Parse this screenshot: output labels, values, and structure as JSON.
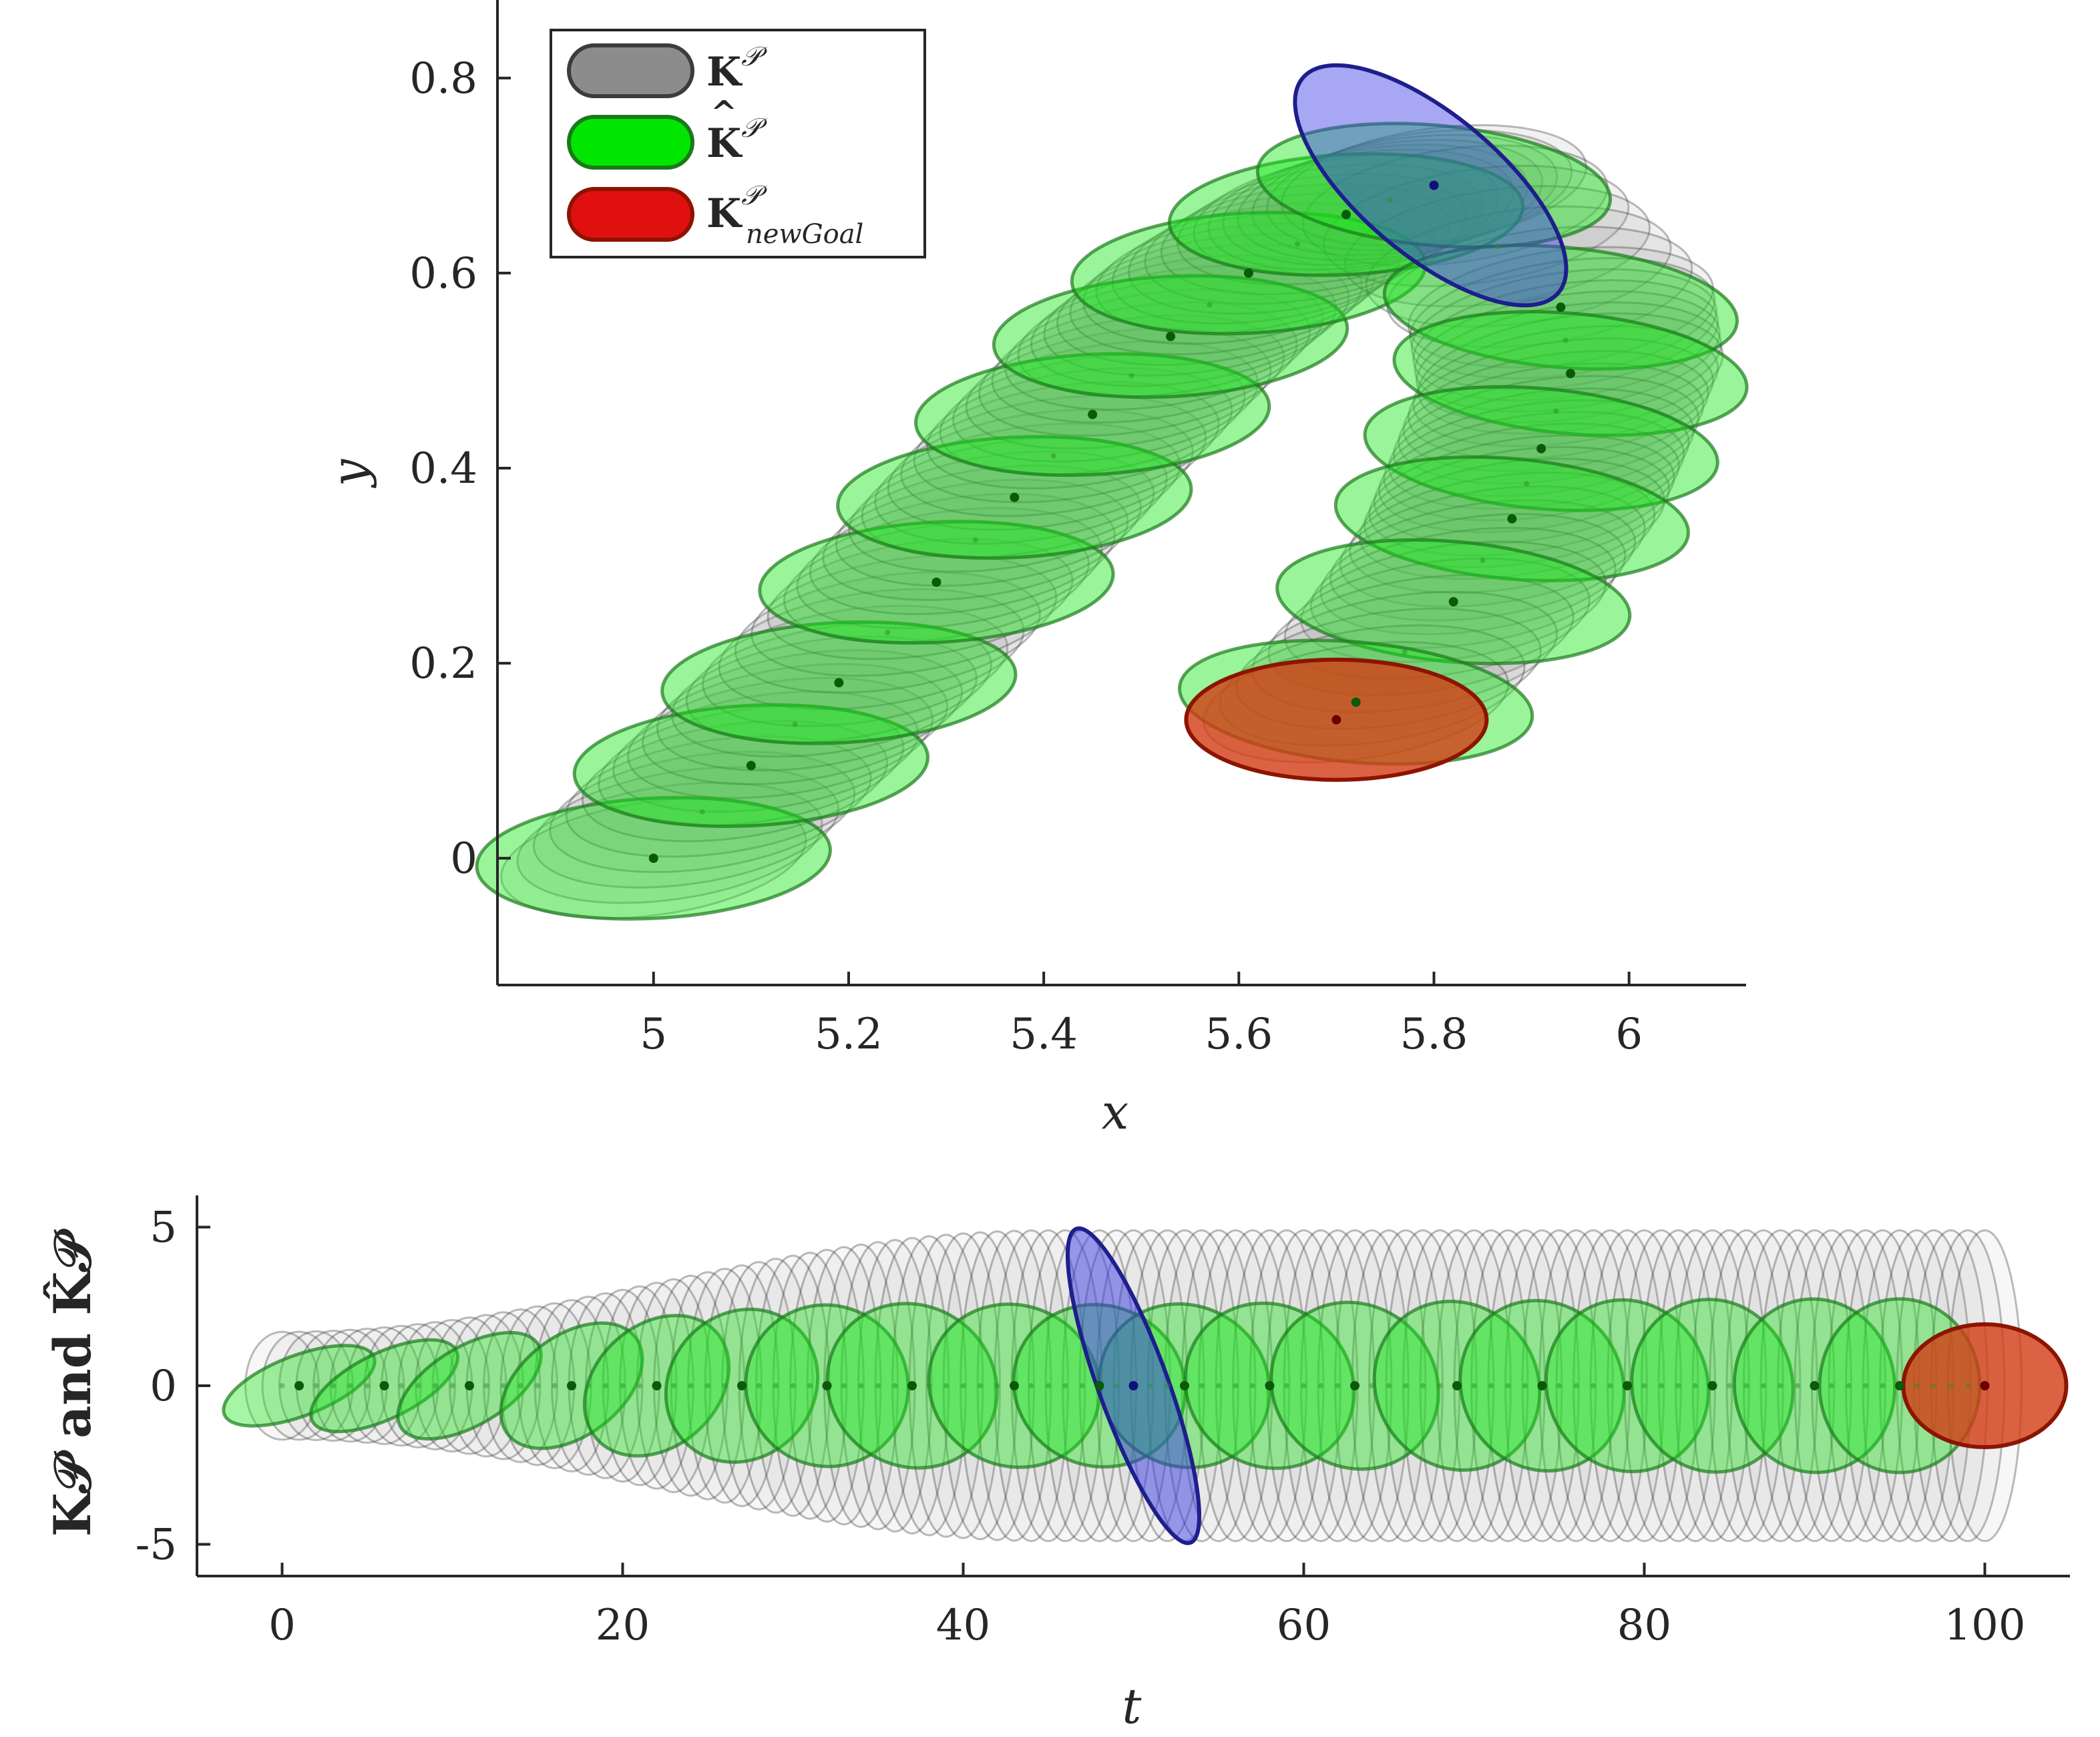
{
  "colors": {
    "kp": "#8c8c8c",
    "kp_stroke": "#3c3c3c",
    "khat": "#1ee61e",
    "khat_stroke": "#1a7a1a",
    "goal": "#d23c14",
    "goal_stroke": "#8c1400",
    "highlight": "#3c3ce6",
    "highlight_stroke": "#1e1e8c"
  },
  "chart_data": [
    {
      "type": "scatter",
      "xlabel": "x",
      "ylabel": "y",
      "xlim": [
        4.84,
        6.12
      ],
      "ylim": [
        -0.13,
        0.88
      ],
      "xticks": [
        5,
        5.2,
        5.4,
        5.6,
        5.8,
        6
      ],
      "xtick_labels": [
        "5",
        "5.2",
        "5.4",
        "5.6",
        "5.8",
        "6"
      ],
      "yticks": [
        0,
        0.2,
        0.4,
        0.6,
        0.8
      ],
      "ytick_labels": [
        "0",
        "0.2",
        "0.4",
        "0.6",
        "0.8"
      ],
      "legend": {
        "placement": "top-left",
        "entries": [
          {
            "label": "K",
            "hat": false,
            "sup": "𝒫",
            "sub": "",
            "color_key": "kp"
          },
          {
            "label": "K",
            "hat": true,
            "sup": "𝒫",
            "sub": "",
            "color_key": "khat"
          },
          {
            "label": "K",
            "hat": false,
            "sup": "𝒫",
            "sub": "newGoal",
            "color_key": "goal"
          }
        ]
      },
      "khat_centers": [
        [
          5.0,
          0.0
        ],
        [
          5.1,
          0.095
        ],
        [
          5.19,
          0.18
        ],
        [
          5.29,
          0.283
        ],
        [
          5.37,
          0.37
        ],
        [
          5.45,
          0.455
        ],
        [
          5.53,
          0.535
        ],
        [
          5.61,
          0.6
        ],
        [
          5.71,
          0.66
        ],
        [
          5.8,
          0.69
        ],
        [
          5.93,
          0.565
        ],
        [
          5.94,
          0.497
        ],
        [
          5.91,
          0.42
        ],
        [
          5.88,
          0.348
        ],
        [
          5.82,
          0.263
        ],
        [
          5.72,
          0.16
        ]
      ],
      "highlight_center": [
        5.8,
        0.69
      ],
      "goal_center": [
        5.7,
        0.142
      ]
    },
    {
      "type": "scatter",
      "xlabel": "t",
      "ylabel": "K𝒫 and K̂𝒫",
      "xlim": [
        -5,
        105
      ],
      "ylim": [
        -6,
        6
      ],
      "xticks": [
        0,
        20,
        40,
        60,
        80,
        100
      ],
      "xtick_labels": [
        "0",
        "20",
        "40",
        "60",
        "80",
        "100"
      ],
      "yticks": [
        5,
        0,
        -5
      ],
      "ytick_labels": [
        "5",
        "0",
        "-5"
      ],
      "khat_times": [
        1,
        6,
        11,
        17,
        22,
        27,
        32,
        37,
        43,
        48,
        53,
        58,
        63,
        69,
        74,
        79,
        84,
        90,
        95
      ],
      "highlight_time": 50,
      "goal_time": 100,
      "goal_value": 0
    }
  ]
}
